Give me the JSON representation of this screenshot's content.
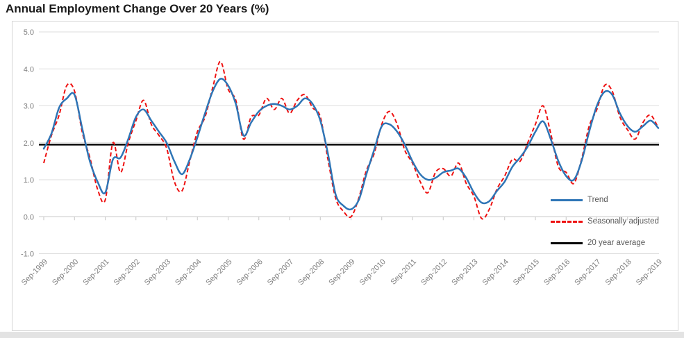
{
  "title": "Annual Employment Change Over 20 Years (%)",
  "colors": {
    "trend": "#2e75b6",
    "seasonally_adjusted": "#ee1111",
    "average": "#000000",
    "gridline": "#dedede",
    "zero_axis": "#c6c6c6",
    "tick_text": "#7f7f7f",
    "legend_text": "#595959"
  },
  "chart_data": {
    "type": "line",
    "title": "Annual Employment Change Over 20 Years (%)",
    "xlabel": "",
    "ylabel": "",
    "ylim": [
      -1.0,
      5.0
    ],
    "y_ticks": [
      "5.0",
      "4.0",
      "3.0",
      "2.0",
      "1.0",
      "0.0",
      "-1.0"
    ],
    "grid": "horizontal",
    "legend_position": "inside-right",
    "x_labels": [
      "Sep-1999",
      "Sep-2000",
      "Sep-2001",
      "Sep-2002",
      "Sep-2003",
      "Sep-2004",
      "Sep-2005",
      "Sep-2006",
      "Sep-2007",
      "Sep-2008",
      "Sep-2009",
      "Sep-2010",
      "Sep-2011",
      "Sep-2012",
      "Sep-2013",
      "Sep-2014",
      "Sep-2015",
      "Sep-2016",
      "Sep-2017",
      "Sep-2018",
      "Sep-2019"
    ],
    "sampling": "quarterly from Sep-1999 to Sep-2019",
    "average_value": 1.95,
    "series": [
      {
        "name": "Trend",
        "color": "#2e75b6",
        "style": "solid",
        "values": [
          1.84,
          2.25,
          2.95,
          3.2,
          3.3,
          2.4,
          1.5,
          0.95,
          0.65,
          1.55,
          1.6,
          2.1,
          2.7,
          2.9,
          2.6,
          2.3,
          2.0,
          1.5,
          1.15,
          1.55,
          2.15,
          2.8,
          3.4,
          3.73,
          3.55,
          3.05,
          2.2,
          2.55,
          2.85,
          3.0,
          3.05,
          3.0,
          2.9,
          3.0,
          3.2,
          3.05,
          2.6,
          1.7,
          0.6,
          0.3,
          0.2,
          0.45,
          1.15,
          1.8,
          2.45,
          2.5,
          2.3,
          1.95,
          1.5,
          1.15,
          1.0,
          1.05,
          1.2,
          1.25,
          1.3,
          1.05,
          0.65,
          0.38,
          0.42,
          0.7,
          0.95,
          1.35,
          1.6,
          1.9,
          2.3,
          2.58,
          2.1,
          1.5,
          1.1,
          1.0,
          1.5,
          2.3,
          3.0,
          3.38,
          3.3,
          2.8,
          2.45,
          2.3,
          2.45,
          2.6,
          2.4
        ]
      },
      {
        "name": "Seasonally adjusted",
        "color": "#ee1111",
        "style": "dashed",
        "values": [
          1.45,
          2.2,
          2.75,
          3.55,
          3.4,
          2.3,
          1.6,
          0.75,
          0.45,
          2.0,
          1.2,
          2.0,
          2.6,
          3.15,
          2.5,
          2.2,
          1.85,
          0.95,
          0.7,
          1.5,
          2.3,
          2.7,
          3.5,
          4.2,
          3.45,
          3.15,
          2.1,
          2.7,
          2.75,
          3.2,
          2.9,
          3.2,
          2.8,
          3.15,
          3.3,
          2.95,
          2.7,
          1.55,
          0.5,
          0.15,
          0.0,
          0.5,
          1.25,
          1.7,
          2.5,
          2.85,
          2.5,
          1.8,
          1.45,
          0.95,
          0.65,
          1.2,
          1.3,
          1.1,
          1.45,
          0.9,
          0.55,
          -0.05,
          0.2,
          0.75,
          1.1,
          1.55,
          1.5,
          2.0,
          2.5,
          3.0,
          2.25,
          1.35,
          1.2,
          0.9,
          1.55,
          2.45,
          2.9,
          3.55,
          3.4,
          2.7,
          2.35,
          2.1,
          2.55,
          2.75,
          2.4
        ]
      },
      {
        "name": "20 year average",
        "color": "#000000",
        "style": "solid",
        "value": 1.95
      }
    ]
  }
}
